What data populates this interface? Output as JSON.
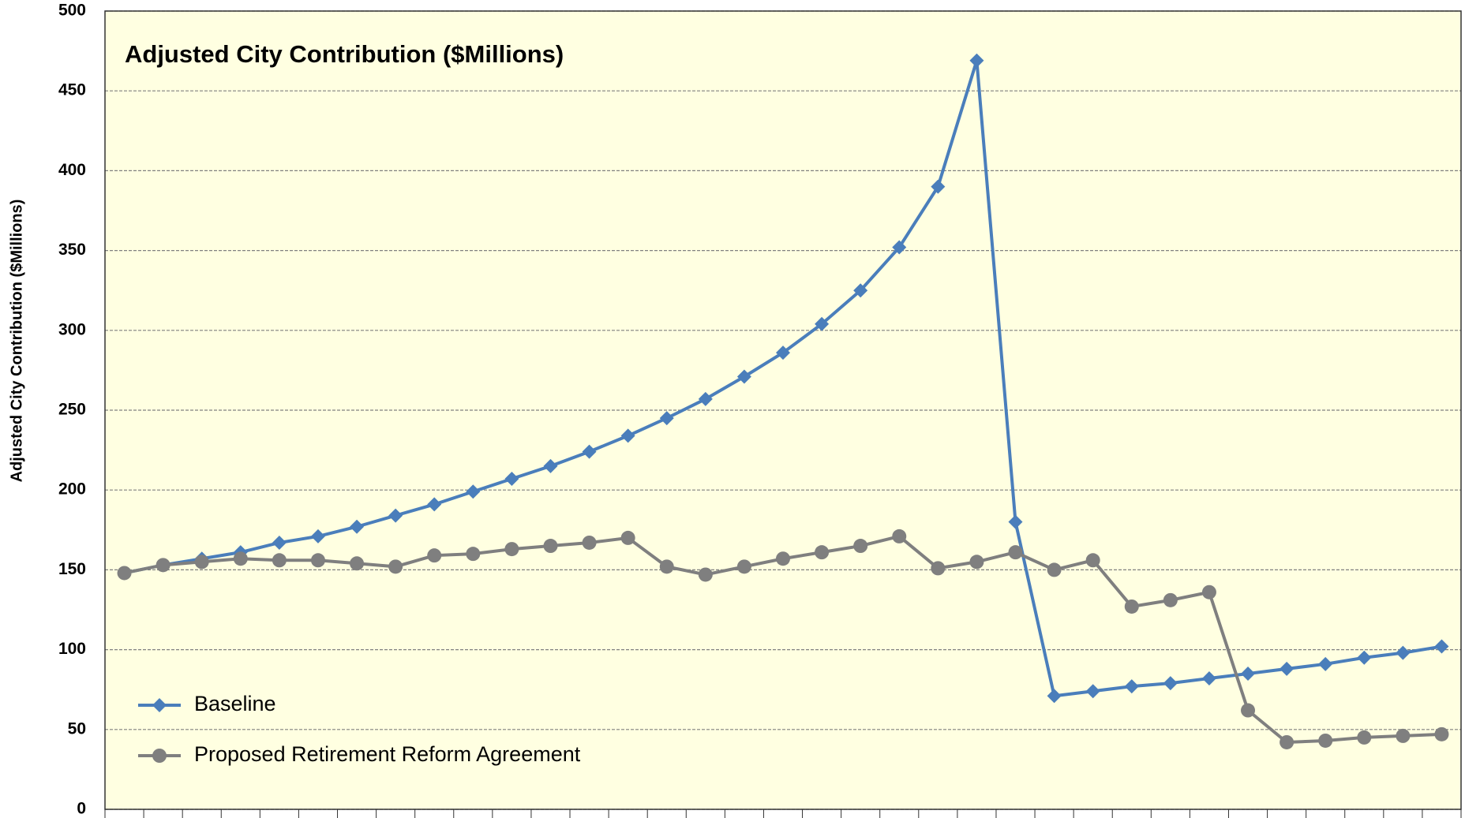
{
  "chart_data": {
    "type": "line",
    "title": "Adjusted City Contribution ($Millions)",
    "y_label": "Adjusted City Contribution  ($Millions)",
    "categories": [
      null,
      null,
      null,
      null,
      null,
      null,
      null,
      null,
      null,
      null,
      null,
      null,
      null,
      null,
      null,
      null,
      null,
      null,
      null,
      null,
      null,
      null,
      null,
      null,
      null,
      null,
      null,
      null,
      null,
      null,
      null,
      null,
      null,
      null,
      null
    ],
    "series": [
      {
        "name": "Baseline",
        "color": "#4a7ebb",
        "marker": "diamond",
        "values": [
          148,
          153,
          157,
          161,
          167,
          171,
          177,
          184,
          191,
          199,
          207,
          215,
          224,
          234,
          245,
          257,
          271,
          286,
          304,
          325,
          352,
          390,
          469,
          180,
          71,
          74,
          77,
          79,
          82,
          85,
          88,
          91,
          95,
          98,
          102
        ]
      },
      {
        "name": "Proposed Retirement Reform Agreement",
        "color": "#7f7f7f",
        "marker": "circle",
        "values": [
          148,
          153,
          155,
          157,
          156,
          156,
          154,
          152,
          159,
          160,
          163,
          165,
          167,
          170,
          152,
          147,
          152,
          157,
          161,
          165,
          171,
          151,
          155,
          161,
          150,
          156,
          127,
          131,
          136,
          62,
          42,
          43,
          45,
          46,
          47
        ]
      }
    ],
    "ylim": [
      0,
      500
    ],
    "yticks": [
      0,
      50,
      100,
      150,
      200,
      250,
      300,
      350,
      400,
      450,
      500
    ],
    "grid": true,
    "legend": "lower left",
    "background": "#ffffe1"
  }
}
